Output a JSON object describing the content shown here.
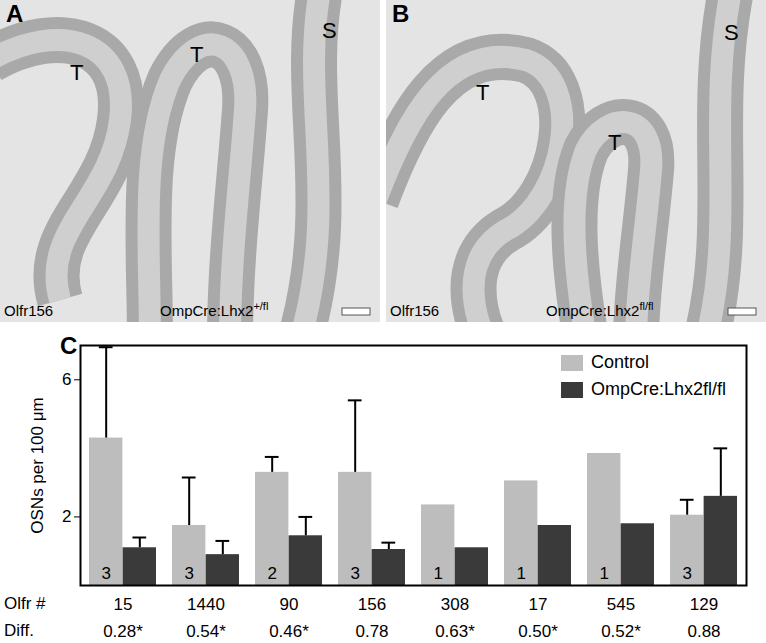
{
  "panels": [
    {
      "label": "A",
      "regions": [
        "T",
        "T",
        "S"
      ],
      "probe": "Olfr156",
      "genotype": "OmpCre:Lhx2",
      "genotype_sup": "+/fl"
    },
    {
      "label": "B",
      "regions": [
        "T",
        "T",
        "S"
      ],
      "probe": "Olfr156",
      "genotype": "OmpCre:Lhx2",
      "genotype_sup": "fl/fl"
    }
  ],
  "chart_data": {
    "type": "bar",
    "panel_label": "C",
    "ylabel": "OSNs per 100 μm",
    "categories": [
      "15",
      "1440",
      "90",
      "156",
      "308",
      "17",
      "545",
      "129"
    ],
    "row_labels": [
      "Olfr #",
      "Diff."
    ],
    "diff": [
      0.28,
      0.54,
      0.46,
      0.78,
      0.63,
      0.5,
      0.52,
      0.88
    ],
    "diff_labels": [
      "0.28*",
      "0.54*",
      "0.46*",
      "0.78",
      "0.63*",
      "0.50*",
      "0.52*",
      "0.88"
    ],
    "series": [
      {
        "name": "Control",
        "color": "#bdbdbd",
        "values": [
          4.3,
          1.75,
          3.3,
          3.3,
          2.35,
          3.05,
          3.85,
          2.05
        ],
        "errors": [
          2.65,
          1.4,
          0.45,
          2.1,
          null,
          null,
          null,
          0.45
        ],
        "n": [
          3,
          3,
          2,
          3,
          1,
          1,
          1,
          3
        ]
      },
      {
        "name": "OmpCre:Lhx2fl/fl",
        "color": "#3a3a3a",
        "values": [
          1.1,
          0.9,
          1.45,
          1.05,
          1.1,
          1.75,
          1.8,
          2.6
        ],
        "errors": [
          0.3,
          0.4,
          0.55,
          0.2,
          null,
          null,
          null,
          1.4
        ]
      }
    ],
    "ylim": [
      0,
      7
    ],
    "yticks": [
      2,
      6
    ],
    "legend": "top-right"
  }
}
